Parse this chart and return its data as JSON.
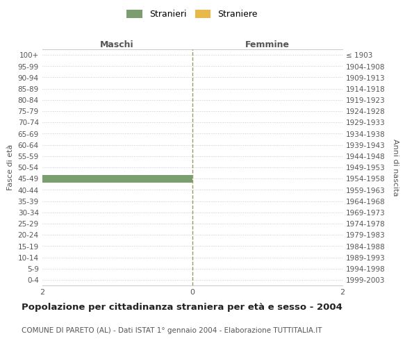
{
  "age_groups": [
    "100+",
    "95-99",
    "90-94",
    "85-89",
    "80-84",
    "75-79",
    "70-74",
    "65-69",
    "60-64",
    "55-59",
    "50-54",
    "45-49",
    "40-44",
    "35-39",
    "30-34",
    "25-29",
    "20-24",
    "15-19",
    "10-14",
    "5-9",
    "0-4"
  ],
  "birth_years": [
    "≤ 1903",
    "1904-1908",
    "1909-1913",
    "1914-1918",
    "1919-1923",
    "1924-1928",
    "1929-1933",
    "1934-1938",
    "1939-1943",
    "1944-1948",
    "1949-1953",
    "1954-1958",
    "1959-1963",
    "1964-1968",
    "1969-1973",
    "1974-1978",
    "1979-1983",
    "1984-1988",
    "1989-1993",
    "1994-1998",
    "1999-2003"
  ],
  "males": [
    0,
    0,
    0,
    0,
    0,
    0,
    0,
    0,
    0,
    0,
    0,
    2,
    0,
    0,
    0,
    0,
    0,
    0,
    0,
    0,
    0
  ],
  "females": [
    0,
    0,
    0,
    0,
    0,
    0,
    0,
    0,
    0,
    0,
    0,
    0,
    0,
    0,
    0,
    0,
    0,
    0,
    0,
    0,
    0
  ],
  "male_color": "#7a9e6e",
  "female_color": "#e8b84b",
  "xlim": 2,
  "title": "Popolazione per cittadinanza straniera per età e sesso - 2004",
  "subtitle": "COMUNE DI PARETO (AL) - Dati ISTAT 1° gennaio 2004 - Elaborazione TUTTITALIA.IT",
  "xlabel_left": "Maschi",
  "xlabel_right": "Femmine",
  "ylabel_left": "Fasce di età",
  "ylabel_right": "Anni di nascita",
  "legend_male": "Stranieri",
  "legend_female": "Straniere",
  "bg_color": "#ffffff",
  "grid_color": "#cccccc",
  "center_line_color": "#999966",
  "axis_color": "#555555",
  "tick_label_color": "#555555"
}
